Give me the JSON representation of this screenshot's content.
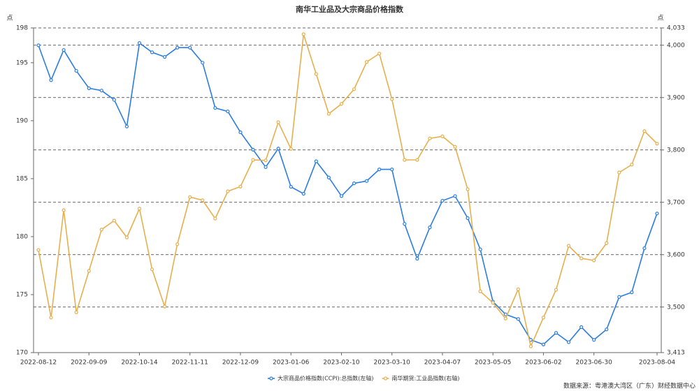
{
  "chart_data": {
    "type": "line",
    "title": "南华工业品及大宗商品价格指数",
    "y_unit": "点",
    "y2_unit": "点",
    "source": "数据来源：粤港澳大湾区（广东）财经数据中心",
    "categories": [
      "2022-08-12",
      null,
      null,
      null,
      "2022-09-09",
      null,
      null,
      null,
      "2022-10-14",
      null,
      null,
      null,
      "2022-11-11",
      null,
      null,
      null,
      "2022-12-09",
      null,
      null,
      null,
      "2023-01-06",
      null,
      null,
      null,
      "2023-02-10",
      null,
      null,
      null,
      "2023-03-10",
      null,
      null,
      null,
      "2023-04-07",
      null,
      null,
      null,
      "2023-05-05",
      null,
      null,
      null,
      "2023-06-02",
      null,
      null,
      null,
      "2023-06-30",
      null,
      null,
      null,
      null,
      "2023-08-04"
    ],
    "series": [
      {
        "name": "大宗商品价格指数(CCPI):总指数(左轴)",
        "color": "#2a7de1",
        "axis": "y",
        "values": [
          196.5,
          193.5,
          196.1,
          194.3,
          192.8,
          192.6,
          191.8,
          189.5,
          196.7,
          195.9,
          195.5,
          196.3,
          196.3,
          195.0,
          191.1,
          190.8,
          189.0,
          187.5,
          186.0,
          187.6,
          184.3,
          183.7,
          186.5,
          185.1,
          183.5,
          184.6,
          184.8,
          185.8,
          185.8,
          181.1,
          178.1,
          180.8,
          183.1,
          183.5,
          181.6,
          178.9,
          174.4,
          173.3,
          172.9,
          171.1,
          170.7,
          171.7,
          170.9,
          172.2,
          171.1,
          172.0,
          174.8,
          175.2,
          179.0,
          182.0
        ]
      },
      {
        "name": "南华期货:工业品指数(右轴)",
        "color": "#e6b04e",
        "axis": "y2",
        "values": [
          3609,
          3480,
          3685,
          3490,
          3569,
          3648,
          3665,
          3633,
          3688,
          3572,
          3501,
          3620,
          3710,
          3704,
          3669,
          3721,
          3730,
          3781,
          3780,
          3853,
          3802,
          4021,
          3945,
          3869,
          3888,
          3916,
          3968,
          3984,
          3897,
          3781,
          3781,
          3822,
          3826,
          3806,
          3725,
          3530,
          3508,
          3478,
          3534,
          3425,
          3480,
          3533,
          3617,
          3593,
          3589,
          3622,
          3757,
          3772,
          3836,
          3812
        ]
      }
    ],
    "ylim": [
      170,
      198
    ],
    "yticks": [
      170,
      175,
      180,
      185,
      190,
      195,
      198
    ],
    "y2lim": [
      3413,
      4033
    ],
    "y2ticks": [
      {
        "value": 3413,
        "label": "3,413"
      },
      {
        "value": 3500,
        "label": "3,500"
      },
      {
        "value": 3600,
        "label": "3,600"
      },
      {
        "value": 3700,
        "label": "3,700"
      },
      {
        "value": 3800,
        "label": "3,800"
      },
      {
        "value": 3900,
        "label": "3,900"
      },
      {
        "value": 4000,
        "label": "4,000"
      },
      {
        "value": 4033,
        "label": "4,033"
      }
    ],
    "grid": true,
    "legend": "bottom"
  }
}
